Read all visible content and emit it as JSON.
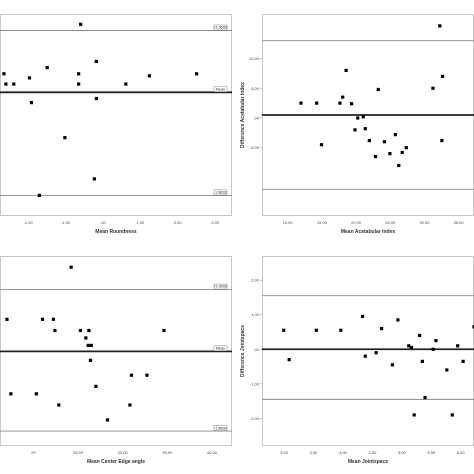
{
  "colors": {
    "frame": "#c8c8c8",
    "limit_line": "#8a8a8a",
    "mean_line": "#222222",
    "point": "#000000",
    "text": "#333333"
  },
  "chart_data": [
    {
      "type": "scatter",
      "xlabel": "Mean Roundness",
      "ylabel": "",
      "xticks": [
        "-2,00",
        "-1,00",
        ",00",
        "1,00",
        "2,00",
        "3,00"
      ],
      "xlim": [
        -2.8,
        3.1
      ],
      "ylim": [
        -0.62,
        0.36
      ],
      "yticks": [],
      "show_tick_y": false,
      "tick_labels_y": [],
      "tags": [
        {
          "y": 0.28,
          "label": "+1.96SD"
        },
        {
          "y": -0.02,
          "label": "Mean"
        },
        {
          "y": -0.52,
          "label": "-1.96SD"
        }
      ],
      "lines": [
        {
          "y": 0.28,
          "kind": "limit"
        },
        {
          "y": -0.02,
          "kind": "mean"
        },
        {
          "y": -0.52,
          "kind": "limit"
        }
      ],
      "points": [
        {
          "x": -2.7,
          "y": 0.07
        },
        {
          "x": -2.65,
          "y": 0.02
        },
        {
          "x": -2.45,
          "y": 0.02
        },
        {
          "x": -2.05,
          "y": 0.05
        },
        {
          "x": -2.0,
          "y": -0.07
        },
        {
          "x": -1.6,
          "y": 0.1
        },
        {
          "x": -1.8,
          "y": -0.52
        },
        {
          "x": -1.15,
          "y": -0.24
        },
        {
          "x": -0.75,
          "y": 0.31
        },
        {
          "x": -0.8,
          "y": 0.07
        },
        {
          "x": -0.8,
          "y": 0.02
        },
        {
          "x": -0.35,
          "y": 0.13
        },
        {
          "x": -0.35,
          "y": -0.05
        },
        {
          "x": -0.4,
          "y": -0.44
        },
        {
          "x": 0.4,
          "y": 0.02
        },
        {
          "x": 1.0,
          "y": 0.06
        },
        {
          "x": 2.2,
          "y": 0.07
        }
      ]
    },
    {
      "type": "scatter",
      "xlabel": "Mean Acetabular Index",
      "ylabel": "Difference Acetabular Index",
      "xticks": [
        "10,00",
        "15,00",
        "20,00",
        "25,00",
        "30,00",
        "35,00"
      ],
      "xlim": [
        6.5,
        37.5
      ],
      "ylim": [
        -16.5,
        17.5
      ],
      "yticks": [
        "10,00",
        "5,00",
        ",00",
        "-5,00"
      ],
      "show_tick_y": true,
      "tick_labels_y": [
        10,
        5,
        0,
        -5
      ],
      "tags": [],
      "lines": [
        {
          "y": 13.0,
          "kind": "limit"
        },
        {
          "y": 0.5,
          "kind": "mean"
        },
        {
          "y": -12.0,
          "kind": "limit"
        }
      ],
      "points": [
        {
          "x": 12.2,
          "y": 2.5
        },
        {
          "x": 14.5,
          "y": 2.5
        },
        {
          "x": 15.2,
          "y": -4.5
        },
        {
          "x": 17.9,
          "y": 2.5
        },
        {
          "x": 18.3,
          "y": 3.5
        },
        {
          "x": 18.8,
          "y": 8.0
        },
        {
          "x": 19.6,
          "y": 2.4
        },
        {
          "x": 20.1,
          "y": -2.0
        },
        {
          "x": 20.5,
          "y": 0.0
        },
        {
          "x": 21.3,
          "y": 0.2
        },
        {
          "x": 21.6,
          "y": -1.8
        },
        {
          "x": 22.2,
          "y": -3.8
        },
        {
          "x": 23.1,
          "y": -6.5
        },
        {
          "x": 23.5,
          "y": 4.8
        },
        {
          "x": 24.4,
          "y": -4.0
        },
        {
          "x": 25.2,
          "y": -6.0
        },
        {
          "x": 26.0,
          "y": -2.8
        },
        {
          "x": 26.5,
          "y": -8.0
        },
        {
          "x": 27.0,
          "y": -5.8
        },
        {
          "x": 27.6,
          "y": -5.0
        },
        {
          "x": 31.5,
          "y": 5.0
        },
        {
          "x": 32.5,
          "y": 15.5
        },
        {
          "x": 32.8,
          "y": -3.8
        },
        {
          "x": 32.9,
          "y": 7.0
        }
      ]
    },
    {
      "type": "scatter",
      "xlabel": "Mean Center Edge angle",
      "ylabel": "",
      "xticks": [
        "20",
        "25,00",
        "30,00",
        "35,00",
        "40,00"
      ],
      "xlim": [
        14.5,
        44.5
      ],
      "ylim": [
        -12.5,
        13.0
      ],
      "yticks": [],
      "show_tick_y": false,
      "tick_labels_y": [],
      "tags": [
        {
          "y": 8.5,
          "label": "+1.96SD"
        },
        {
          "y": 0.2,
          "label": "Mean"
        },
        {
          "y": -10.5,
          "label": "-1.96SD"
        }
      ],
      "lines": [
        {
          "y": 8.5,
          "kind": "limit"
        },
        {
          "y": 0.2,
          "kind": "mean"
        },
        {
          "y": -10.5,
          "kind": "limit"
        }
      ],
      "points": [
        {
          "x": 15.4,
          "y": 4.5
        },
        {
          "x": 15.9,
          "y": -5.5
        },
        {
          "x": 19.2,
          "y": -5.5
        },
        {
          "x": 20.0,
          "y": 4.5
        },
        {
          "x": 21.4,
          "y": 4.5
        },
        {
          "x": 21.6,
          "y": 3.0
        },
        {
          "x": 22.1,
          "y": -7.0
        },
        {
          "x": 23.7,
          "y": 11.5
        },
        {
          "x": 24.9,
          "y": 3.0
        },
        {
          "x": 25.6,
          "y": 2.0
        },
        {
          "x": 25.9,
          "y": 1.0
        },
        {
          "x": 26.0,
          "y": 3.0
        },
        {
          "x": 26.2,
          "y": -1.0
        },
        {
          "x": 26.3,
          "y": 1.0
        },
        {
          "x": 26.9,
          "y": -4.5
        },
        {
          "x": 28.4,
          "y": -9.0
        },
        {
          "x": 31.5,
          "y": -3.0
        },
        {
          "x": 31.3,
          "y": -7.0
        },
        {
          "x": 33.5,
          "y": -3.0
        },
        {
          "x": 35.7,
          "y": 3.0
        }
      ]
    },
    {
      "type": "scatter",
      "xlabel": "Mean Jointspace",
      "ylabel": "Difference Jointspace",
      "xticks": [
        "3,00",
        "3,50",
        "4,00",
        "4,50",
        "5,00",
        "5,50",
        "6,00"
      ],
      "xlim": [
        2.55,
        6.45
      ],
      "ylim": [
        -2.8,
        2.7
      ],
      "yticks": [
        "2,00",
        "1,00",
        ",00",
        "-1,00",
        "-2,00"
      ],
      "show_tick_y": true,
      "tick_labels_y": [
        2,
        1,
        0,
        -1,
        -2
      ],
      "tags": [],
      "lines": [
        {
          "y": 1.55,
          "kind": "limit"
        },
        {
          "y": 0.0,
          "kind": "mean"
        },
        {
          "y": -1.45,
          "kind": "limit"
        }
      ],
      "points": [
        {
          "x": 2.95,
          "y": 0.55
        },
        {
          "x": 3.05,
          "y": -0.3
        },
        {
          "x": 3.55,
          "y": 0.55
        },
        {
          "x": 4.0,
          "y": 0.55
        },
        {
          "x": 4.4,
          "y": 0.95
        },
        {
          "x": 4.45,
          "y": -0.2
        },
        {
          "x": 4.65,
          "y": -0.1
        },
        {
          "x": 4.75,
          "y": 0.6
        },
        {
          "x": 4.95,
          "y": -0.45
        },
        {
          "x": 5.05,
          "y": 0.85
        },
        {
          "x": 5.25,
          "y": 0.1
        },
        {
          "x": 5.3,
          "y": 0.05
        },
        {
          "x": 5.35,
          "y": -1.9
        },
        {
          "x": 5.45,
          "y": 0.4
        },
        {
          "x": 5.5,
          "y": -0.35
        },
        {
          "x": 5.55,
          "y": -1.4
        },
        {
          "x": 5.7,
          "y": 0.0
        },
        {
          "x": 5.75,
          "y": 0.25
        },
        {
          "x": 5.95,
          "y": -0.6
        },
        {
          "x": 6.05,
          "y": -1.9
        },
        {
          "x": 6.15,
          "y": 0.1
        },
        {
          "x": 6.25,
          "y": -0.35
        },
        {
          "x": 6.45,
          "y": 0.65
        }
      ]
    }
  ]
}
